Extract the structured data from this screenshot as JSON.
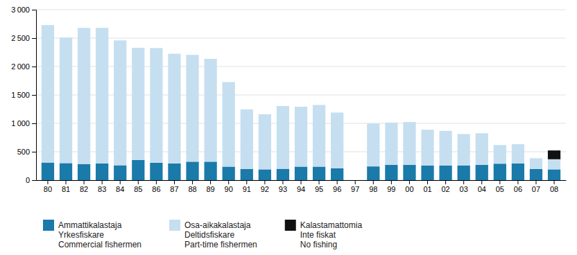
{
  "chart_data": {
    "type": "bar",
    "stacked": true,
    "categories": [
      "80",
      "81",
      "82",
      "83",
      "84",
      "85",
      "86",
      "87",
      "88",
      "89",
      "90",
      "91",
      "92",
      "93",
      "94",
      "95",
      "96",
      "97",
      "98",
      "99",
      "00",
      "01",
      "02",
      "03",
      "04",
      "05",
      "06",
      "07",
      "08"
    ],
    "series": [
      {
        "name": "Ammattikalastaja\nYrkesfiskare\nCommercial fishermen",
        "color": "#1a7aaa",
        "values": [
          310,
          300,
          285,
          295,
          262,
          355,
          305,
          295,
          325,
          325,
          238,
          198,
          190,
          200,
          238,
          238,
          210,
          0,
          242,
          268,
          268,
          256,
          256,
          260,
          268,
          290,
          295,
          198,
          190
        ]
      },
      {
        "name": "Osa-aikakalastaja\nDeltidsfiskare\nPart-time fishermen",
        "color": "#c5dff0",
        "values": [
          2420,
          2210,
          2395,
          2385,
          2198,
          1975,
          2020,
          1930,
          1880,
          1810,
          1488,
          1048,
          970,
          1105,
          1055,
          1085,
          980,
          0,
          755,
          745,
          755,
          632,
          612,
          552,
          558,
          328,
          338,
          188,
          178
        ]
      },
      {
        "name": "Kalastamattomia\nInte fiskat\nNo fishing",
        "color": "#111111",
        "values": [
          0,
          0,
          0,
          0,
          0,
          0,
          0,
          0,
          0,
          0,
          0,
          0,
          0,
          0,
          0,
          0,
          0,
          0,
          0,
          0,
          0,
          0,
          0,
          0,
          0,
          0,
          0,
          0,
          155
        ]
      }
    ],
    "ylim": [
      0,
      3000
    ],
    "yticks": [
      0,
      500,
      {
        "value": 1000,
        "label": "1 000"
      },
      {
        "value": 1500,
        "label": "1 500"
      },
      {
        "value": 2000,
        "label": "2 000"
      },
      {
        "value": 2500,
        "label": "2 500"
      },
      {
        "value": 3000,
        "label": "3 000"
      }
    ],
    "grid": true,
    "legend": "bottom"
  }
}
